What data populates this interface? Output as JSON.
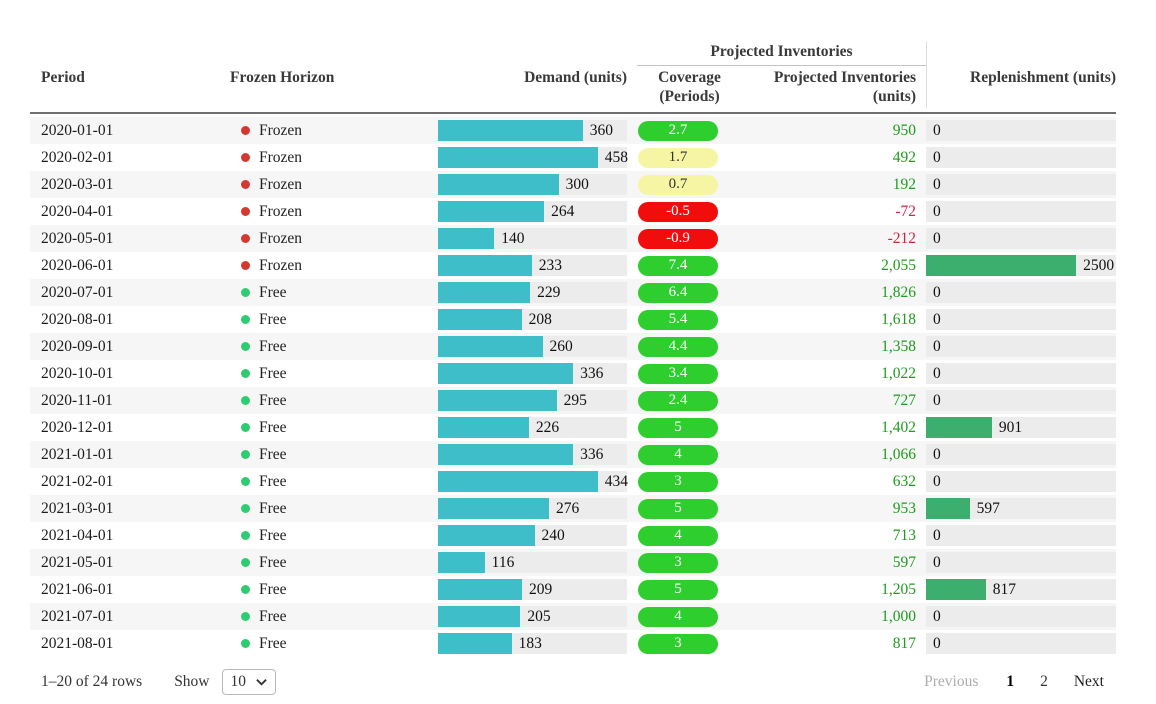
{
  "table": {
    "group_header": "Projected Inventories",
    "columns": {
      "period": "Period",
      "horizon": "Frozen Horizon",
      "demand": "Demand (units)",
      "coverage_line1": "Coverage",
      "coverage_line2": "(Periods)",
      "projected_line1": "Projected Inventories",
      "projected_line2": "(units)",
      "replenishment": "Replenishment (units)"
    },
    "rows": [
      {
        "period": "2020-01-01",
        "horizon": "Frozen",
        "demand": 360,
        "coverage": "2.7",
        "coverage_status": "green",
        "projected_inventories": "950",
        "replenishment": 0
      },
      {
        "period": "2020-02-01",
        "horizon": "Frozen",
        "demand": 458,
        "coverage": "1.7",
        "coverage_status": "yellow",
        "projected_inventories": "492",
        "replenishment": 0
      },
      {
        "period": "2020-03-01",
        "horizon": "Frozen",
        "demand": 300,
        "coverage": "0.7",
        "coverage_status": "yellow",
        "projected_inventories": "192",
        "replenishment": 0
      },
      {
        "period": "2020-04-01",
        "horizon": "Frozen",
        "demand": 264,
        "coverage": "-0.5",
        "coverage_status": "red",
        "projected_inventories": "-72",
        "replenishment": 0
      },
      {
        "period": "2020-05-01",
        "horizon": "Frozen",
        "demand": 140,
        "coverage": "-0.9",
        "coverage_status": "red",
        "projected_inventories": "-212",
        "replenishment": 0
      },
      {
        "period": "2020-06-01",
        "horizon": "Frozen",
        "demand": 233,
        "coverage": "7.4",
        "coverage_status": "green",
        "projected_inventories": "2,055",
        "replenishment": 2500
      },
      {
        "period": "2020-07-01",
        "horizon": "Free",
        "demand": 229,
        "coverage": "6.4",
        "coverage_status": "green",
        "projected_inventories": "1,826",
        "replenishment": 0
      },
      {
        "period": "2020-08-01",
        "horizon": "Free",
        "demand": 208,
        "coverage": "5.4",
        "coverage_status": "green",
        "projected_inventories": "1,618",
        "replenishment": 0
      },
      {
        "period": "2020-09-01",
        "horizon": "Free",
        "demand": 260,
        "coverage": "4.4",
        "coverage_status": "green",
        "projected_inventories": "1,358",
        "replenishment": 0
      },
      {
        "period": "2020-10-01",
        "horizon": "Free",
        "demand": 336,
        "coverage": "3.4",
        "coverage_status": "green",
        "projected_inventories": "1,022",
        "replenishment": 0
      },
      {
        "period": "2020-11-01",
        "horizon": "Free",
        "demand": 295,
        "coverage": "2.4",
        "coverage_status": "green",
        "projected_inventories": "727",
        "replenishment": 0
      },
      {
        "period": "2020-12-01",
        "horizon": "Free",
        "demand": 226,
        "coverage": "5",
        "coverage_status": "green",
        "projected_inventories": "1,402",
        "replenishment": 901
      },
      {
        "period": "2021-01-01",
        "horizon": "Free",
        "demand": 336,
        "coverage": "4",
        "coverage_status": "green",
        "projected_inventories": "1,066",
        "replenishment": 0
      },
      {
        "period": "2021-02-01",
        "horizon": "Free",
        "demand": 434,
        "coverage": "3",
        "coverage_status": "green",
        "projected_inventories": "632",
        "replenishment": 0
      },
      {
        "period": "2021-03-01",
        "horizon": "Free",
        "demand": 276,
        "coverage": "5",
        "coverage_status": "green",
        "projected_inventories": "953",
        "replenishment": 597
      },
      {
        "period": "2021-04-01",
        "horizon": "Free",
        "demand": 240,
        "coverage": "4",
        "coverage_status": "green",
        "projected_inventories": "713",
        "replenishment": 0
      },
      {
        "period": "2021-05-01",
        "horizon": "Free",
        "demand": 116,
        "coverage": "3",
        "coverage_status": "green",
        "projected_inventories": "597",
        "replenishment": 0
      },
      {
        "period": "2021-06-01",
        "horizon": "Free",
        "demand": 209,
        "coverage": "5",
        "coverage_status": "green",
        "projected_inventories": "1,205",
        "replenishment": 817
      },
      {
        "period": "2021-07-01",
        "horizon": "Free",
        "demand": 205,
        "coverage": "4",
        "coverage_status": "green",
        "projected_inventories": "1,000",
        "replenishment": 0
      },
      {
        "period": "2021-08-01",
        "horizon": "Free",
        "demand": 183,
        "coverage": "3",
        "coverage_status": "green",
        "projected_inventories": "817",
        "replenishment": 0
      }
    ]
  },
  "scales": {
    "demand_axis_max": 470,
    "demand_bar_cap_pct": 84.5,
    "replenishment_axis_max": 2600,
    "replenishment_bar_cap_pct": 79
  },
  "footer": {
    "range_info": "1–20 of 24 rows",
    "show_label": "Show",
    "page_size": "10",
    "pagination": {
      "previous": "Previous",
      "pages": [
        "1",
        "2"
      ],
      "current_page": "1",
      "next": "Next"
    }
  },
  "colors": {
    "demand_bar": "#3dbec8",
    "repl_bar": "#3cae6e",
    "pill_green": "#2fce2f",
    "pill_yellow": "#f5f5a3",
    "pill_red": "#f20d0d",
    "positive_green": "#1f9b1f",
    "negative_red": "#d0233f",
    "frozen_dot": "#d4382e",
    "free_dot": "#2ecc71"
  }
}
